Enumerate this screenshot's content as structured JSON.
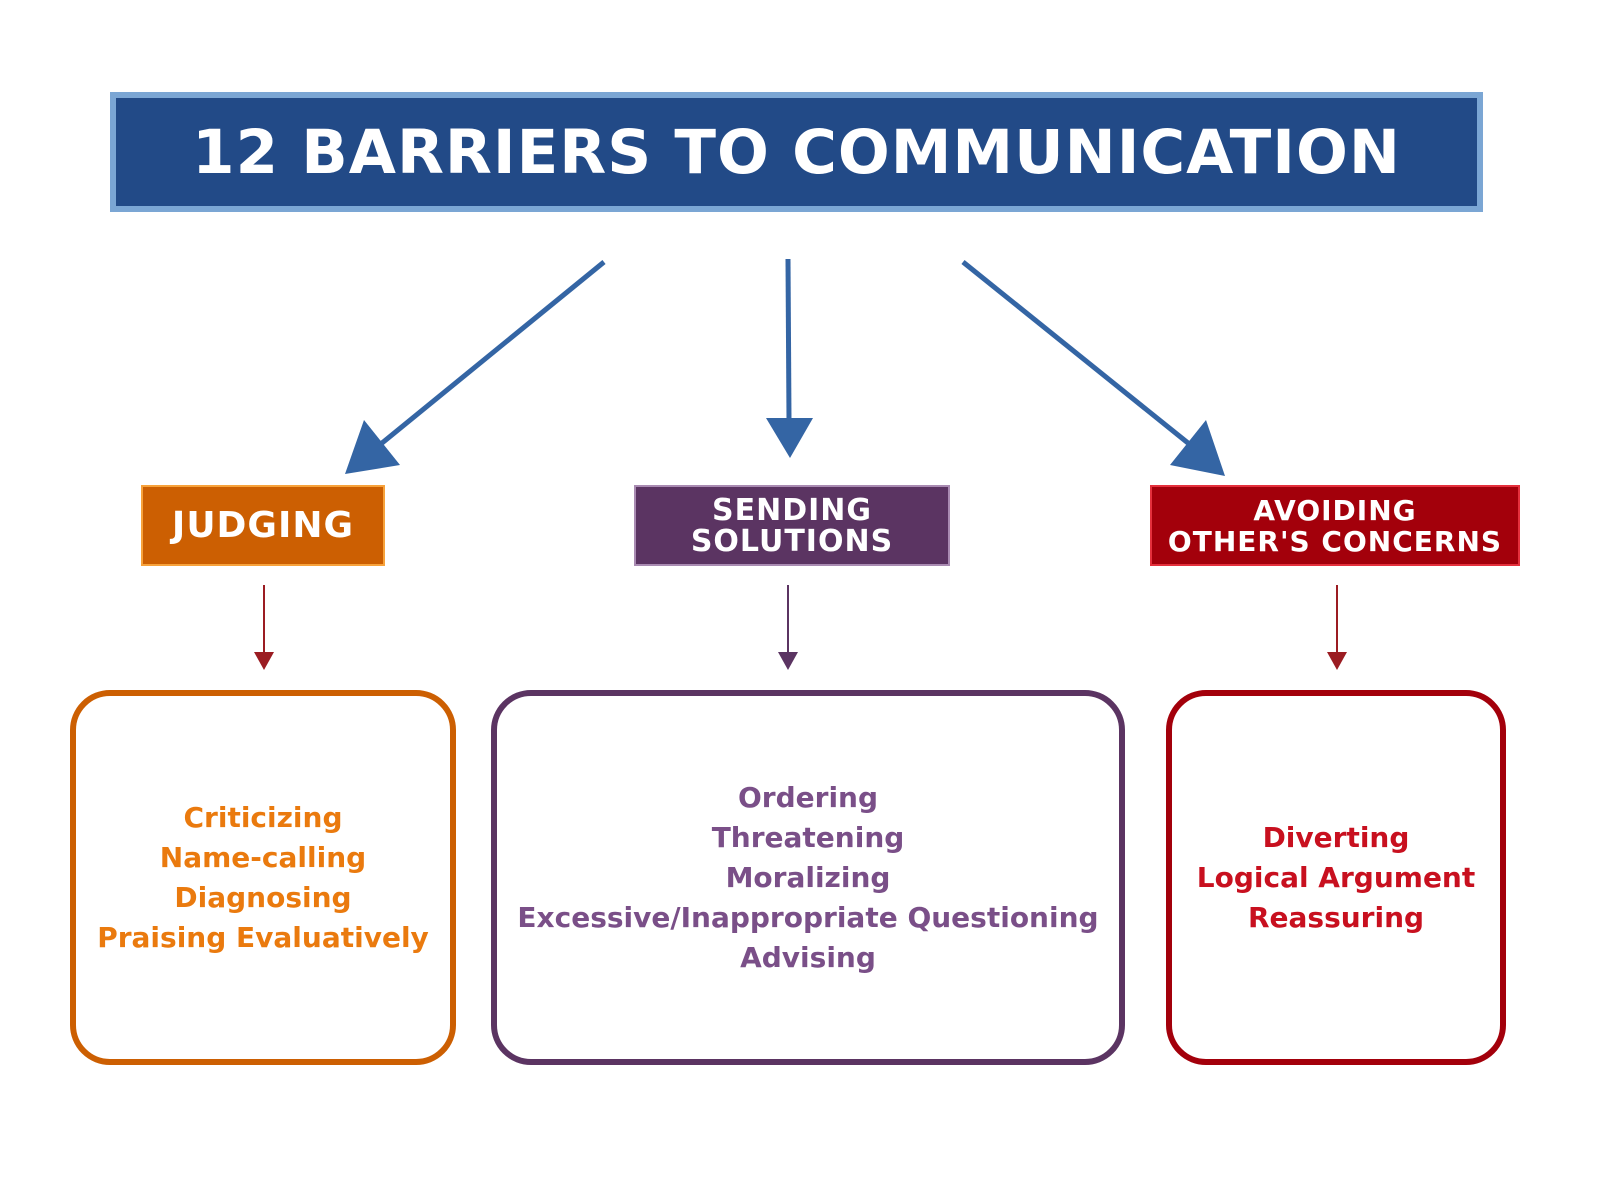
{
  "title": "12 BARRIERS TO COMMUNICATION",
  "colors": {
    "title_bg": "#224a87",
    "title_border": "#7ba6d4",
    "arrow_blue": "#3465a4",
    "judging": "#cc5f02",
    "sending": "#5b3462",
    "avoiding": "#a3000b",
    "small_arrow": "#9b1c22"
  },
  "categories": [
    {
      "label_lines": [
        "JUDGING"
      ],
      "items": [
        "Criticizing",
        "Name-calling",
        "Diagnosing",
        "Praising Evaluatively"
      ]
    },
    {
      "label_lines": [
        "SENDING",
        "SOLUTIONS"
      ],
      "items": [
        "Ordering",
        "Threatening",
        "Moralizing",
        "Excessive/Inappropriate Questioning",
        "Advising"
      ]
    },
    {
      "label_lines": [
        "AVOIDING",
        "OTHER'S CONCERNS"
      ],
      "items": [
        "Diverting",
        "Logical Argument",
        "Reassuring"
      ]
    }
  ]
}
